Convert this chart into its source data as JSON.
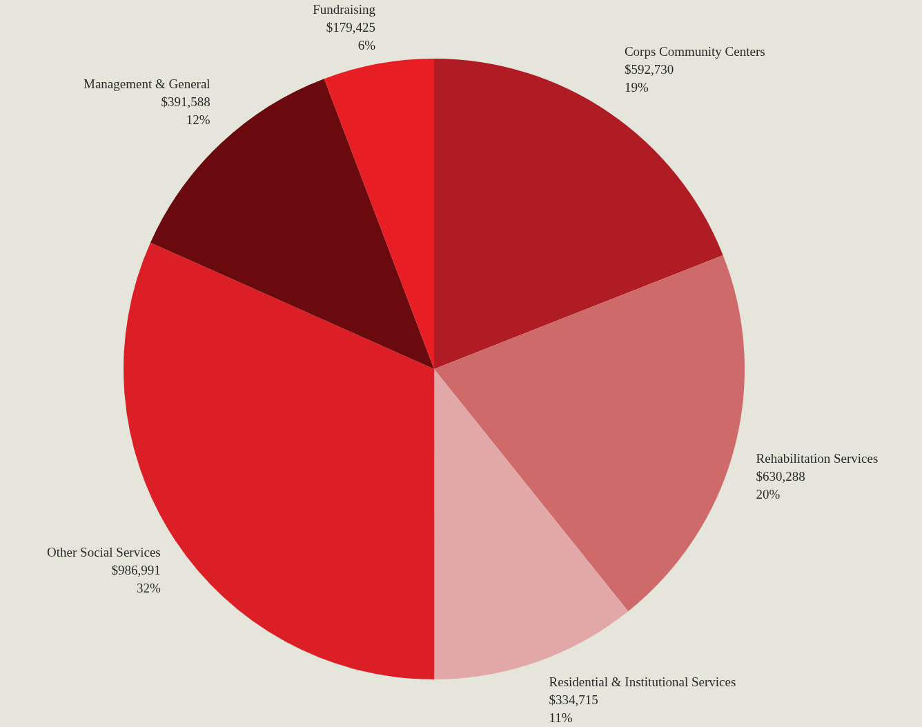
{
  "chart_data": {
    "type": "pie",
    "categories": [
      "Corps Community Centers",
      "Rehabilitation Services",
      "Residential & Institutional Services",
      "Other Social Services",
      "Management & General",
      "Fundraising"
    ],
    "values": [
      592730,
      630288,
      334715,
      986991,
      391588,
      179425
    ],
    "colors": [
      "#b01c23",
      "#cf6a6a",
      "#e2a7a7",
      "#dc1f26",
      "#6a0a0e",
      "#e81e25"
    ],
    "value_labels": [
      "$592,730\n19%",
      "$630,288\n20%",
      "$334,715\n11%",
      "$986,991\n32%",
      "$391,588\n12%",
      "$179,425\n6%"
    ]
  }
}
